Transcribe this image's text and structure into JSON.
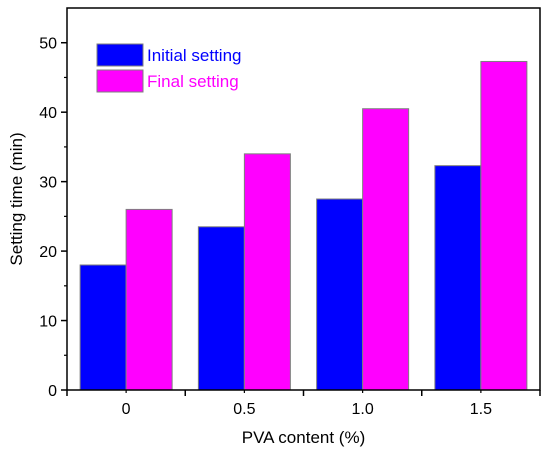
{
  "chart_data": {
    "type": "bar",
    "title": "",
    "xlabel": "PVA content (%)",
    "ylabel": "Setting time (min)",
    "categories": [
      "0",
      "0.5",
      "1.0",
      "1.5"
    ],
    "series": [
      {
        "name": "Initial setting",
        "values": [
          18,
          23.5,
          27.5,
          32.3
        ]
      },
      {
        "name": "Final setting",
        "values": [
          26,
          34,
          40.5,
          47.3
        ]
      }
    ],
    "ylim": [
      0,
      55
    ],
    "yticks": [
      0,
      10,
      20,
      30,
      40,
      50
    ],
    "grid": false,
    "legend_position": "top-left"
  },
  "colors": {
    "initial": "#0000ff",
    "final": "#ff00ff",
    "bar_edge": "#7f7f7f",
    "axis": "#000000"
  }
}
